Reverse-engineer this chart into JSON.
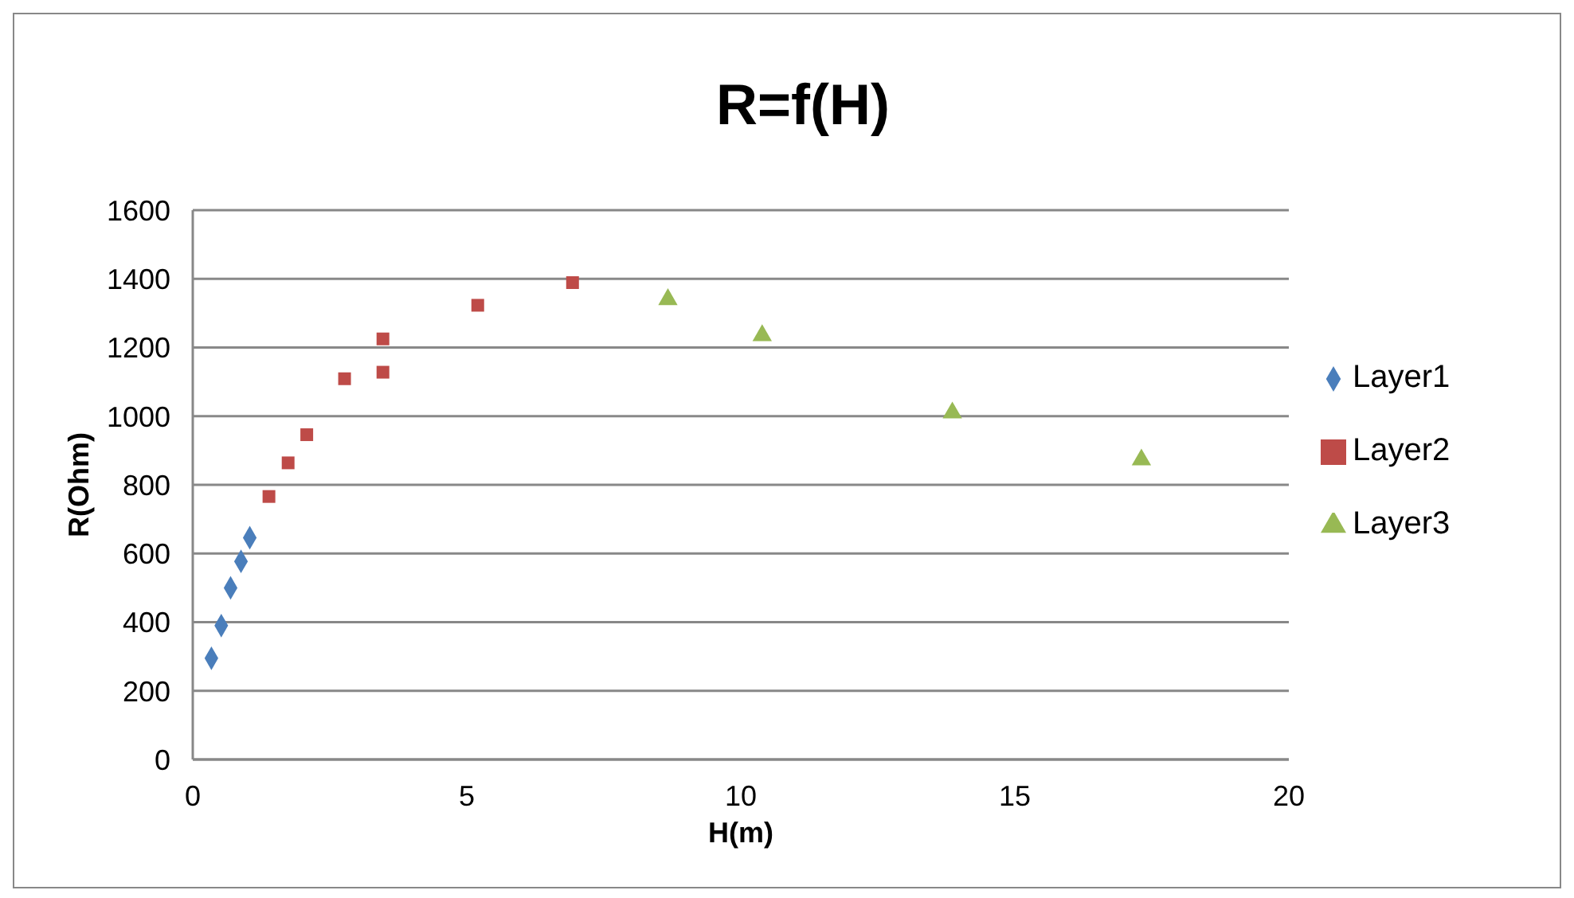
{
  "chart_data": {
    "type": "scatter",
    "title": "R=f(H)",
    "xlabel": "H(m)",
    "ylabel": "R(Ohm)",
    "xlim": [
      0,
      20
    ],
    "xticks": [
      0,
      5,
      10,
      15,
      20
    ],
    "ylim": [
      0,
      1600
    ],
    "yticks": [
      0,
      200,
      400,
      600,
      800,
      1000,
      1200,
      1400,
      1600
    ],
    "grid": "y",
    "legend": "right",
    "series": [
      {
        "name": "Layer1",
        "color": "#4a7ebb",
        "marker": "diamond",
        "x": [
          0.34,
          0.52,
          0.69,
          0.88,
          1.04
        ],
        "values": [
          295,
          390,
          500,
          577,
          646
        ]
      },
      {
        "name": "Layer2",
        "color": "#be4b48",
        "marker": "square",
        "x": [
          1.39,
          1.74,
          2.08,
          2.77,
          3.47,
          3.47,
          5.2,
          6.93
        ],
        "values": [
          766,
          864,
          946,
          1109,
          1128,
          1225,
          1323,
          1389
        ]
      },
      {
        "name": "Layer3",
        "color": "#98b954",
        "marker": "triangle",
        "x": [
          8.67,
          10.39,
          13.86,
          17.31
        ],
        "values": [
          1340,
          1235,
          1010,
          873
        ]
      }
    ]
  }
}
